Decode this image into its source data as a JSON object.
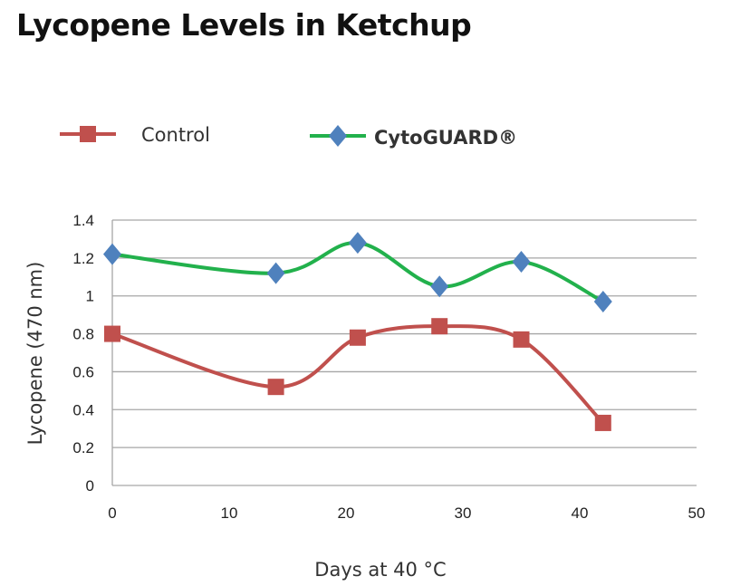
{
  "chart_data": {
    "type": "line",
    "title": "Lycopene Levels in Ketchup",
    "xlabel": "Days at 40 °C",
    "ylabel": "Lycopene (470 nm)",
    "xlim": [
      0,
      50
    ],
    "ylim": [
      0,
      1.4
    ],
    "xticks": [
      "0",
      "10",
      "20",
      "30",
      "40",
      "50"
    ],
    "yticks": [
      "0",
      "0.2",
      "0.4",
      "0.6",
      "0.8",
      "1",
      "1.2",
      "1.4"
    ],
    "grid": "horizontal",
    "legend": "top",
    "smooth": true,
    "series": [
      {
        "name": "Control",
        "color": "#c0504d",
        "marker": "square",
        "x": [
          0,
          14,
          21,
          28,
          35,
          42
        ],
        "y": [
          0.8,
          0.52,
          0.78,
          0.84,
          0.77,
          0.33
        ]
      },
      {
        "name": "CytoGUARD®",
        "color": "#22b14c",
        "marker_color": "#4f81bd",
        "marker": "diamond",
        "x": [
          0,
          14,
          21,
          28,
          35,
          42
        ],
        "y": [
          1.22,
          1.12,
          1.28,
          1.05,
          1.18,
          0.97
        ]
      }
    ]
  }
}
